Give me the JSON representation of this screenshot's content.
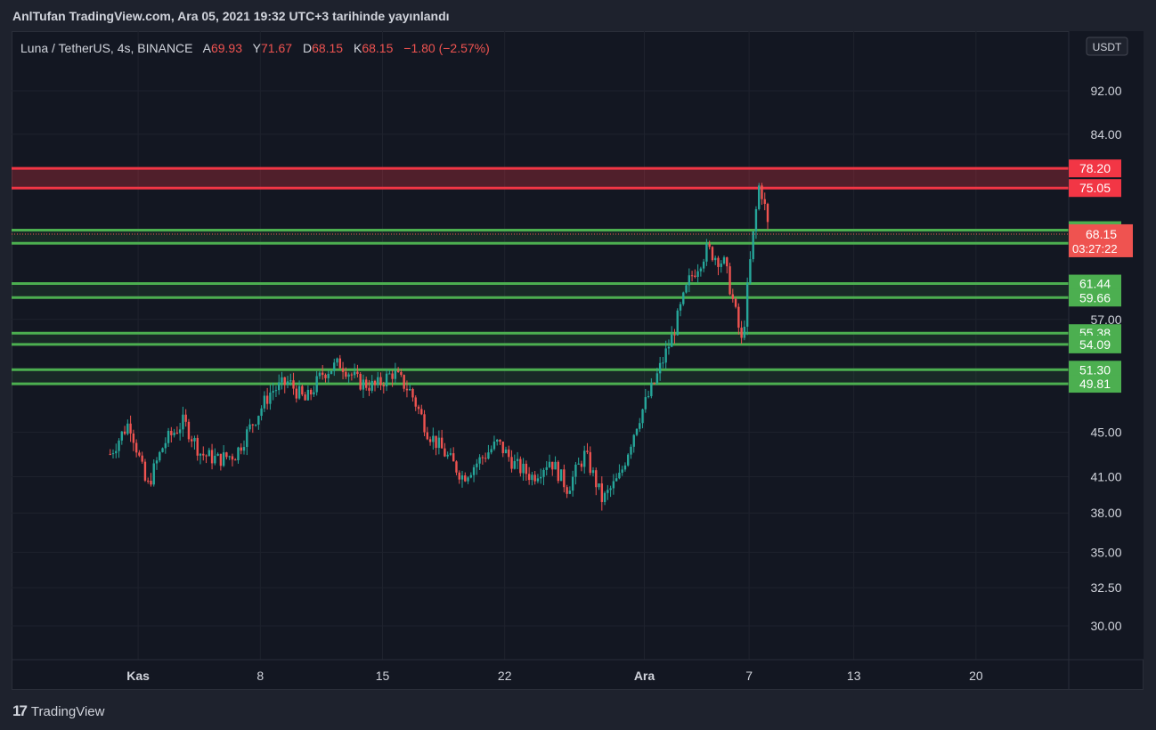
{
  "header": {
    "published": "AnlTufan TradingView.com, Ara 05, 2021 19:32 UTC+3 tarihinde yayınlandı"
  },
  "legend": {
    "symbol": "Luna / TetherUS, 4s, BINANCE",
    "o_label": "A",
    "o_value": "69.93",
    "h_label": "Y",
    "h_value": "71.67",
    "l_label": "D",
    "l_value": "68.15",
    "c_label": "K",
    "c_value": "68.15",
    "change": "−1.80 (−2.57%)"
  },
  "footer": {
    "brand": "TradingView"
  },
  "colors": {
    "up": "#26a69a",
    "down": "#ef5350",
    "support": "#4caf50",
    "resistance": "#f23645",
    "bg": "#131722"
  },
  "chart_data": {
    "type": "candlestick",
    "currency": "USDT",
    "y_scale": "log",
    "y_ticks": [
      "92.00",
      "84.00",
      "57.00",
      "45.00",
      "41.00",
      "38.00",
      "35.00",
      "32.50",
      "30.00"
    ],
    "x_ticks": [
      {
        "label": "Kas",
        "bold": true,
        "day": 1
      },
      {
        "label": "8",
        "bold": false,
        "day": 8
      },
      {
        "label": "15",
        "bold": false,
        "day": 15
      },
      {
        "label": "22",
        "bold": false,
        "day": 22
      },
      {
        "label": "Ara",
        "bold": true,
        "day": 30
      },
      {
        "label": "7",
        "bold": false,
        "day": 36
      },
      {
        "label": "13",
        "bold": false,
        "day": 42
      },
      {
        "label": "20",
        "bold": false,
        "day": 49
      }
    ],
    "last_price": "68.15",
    "countdown": "03:27:22",
    "resistance_zone": {
      "levels": [
        "78.20",
        "75.05"
      ]
    },
    "support_zones": [
      {
        "levels": [
          "68.71",
          "66.85"
        ]
      },
      {
        "levels": [
          "61.44",
          "59.66"
        ]
      },
      {
        "levels": [
          "55.38",
          "54.09"
        ]
      },
      {
        "levels": [
          "51.30",
          "49.81"
        ]
      }
    ],
    "price_path": [
      [
        -0.6,
        43
      ],
      [
        0.5,
        46
      ],
      [
        1.5,
        40
      ],
      [
        2.5,
        44
      ],
      [
        3.6,
        46
      ],
      [
        4.6,
        43
      ],
      [
        5.6,
        42.5
      ],
      [
        6.6,
        43
      ],
      [
        7.6,
        46
      ],
      [
        8.6,
        49
      ],
      [
        9.6,
        50
      ],
      [
        10.6,
        48
      ],
      [
        11.6,
        51
      ],
      [
        12.6,
        52
      ],
      [
        13.6,
        50
      ],
      [
        14.6,
        49.5
      ],
      [
        15.6,
        51
      ],
      [
        16.6,
        49
      ],
      [
        17.6,
        45
      ],
      [
        18.6,
        43
      ],
      [
        19.6,
        41
      ],
      [
        20.6,
        42.5
      ],
      [
        21.6,
        44
      ],
      [
        22.6,
        42
      ],
      [
        23.6,
        41
      ],
      [
        24.6,
        42.5
      ],
      [
        25.6,
        40
      ],
      [
        26.6,
        43
      ],
      [
        27.6,
        39
      ],
      [
        28.6,
        41
      ],
      [
        29.6,
        46
      ],
      [
        30.6,
        50
      ],
      [
        31.6,
        55
      ],
      [
        32.6,
        62
      ],
      [
        33.6,
        66
      ],
      [
        34.6,
        64
      ],
      [
        35.6,
        54
      ],
      [
        36.6,
        76
      ],
      [
        37.2,
        68.15
      ]
    ]
  }
}
